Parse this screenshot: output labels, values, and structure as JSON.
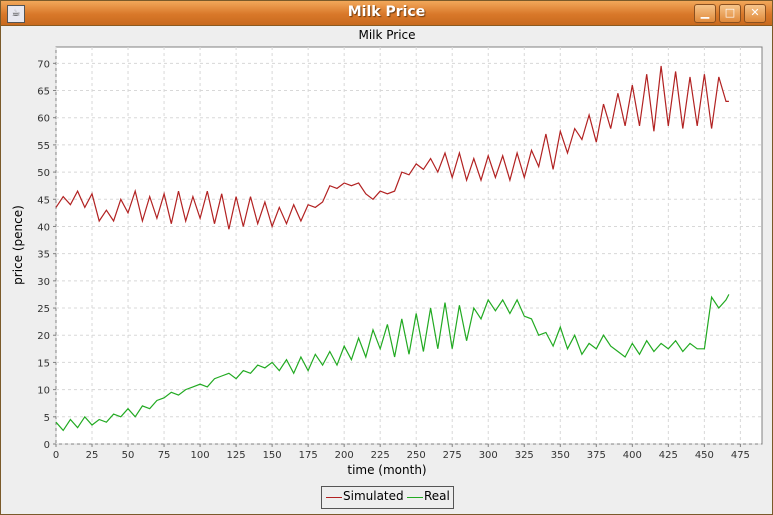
{
  "window": {
    "title": "Milk Price",
    "app_icon": "java-cup-icon"
  },
  "controls": {
    "minimize": "minimize-icon",
    "maximize": "maximize-icon",
    "close": "close-icon"
  },
  "chart_data": {
    "type": "line",
    "title": "Milk Price",
    "xlabel": "time (month)",
    "ylabel": "price (pence)",
    "xlim": [
      0,
      490
    ],
    "ylim": [
      0,
      73
    ],
    "xticks": [
      0,
      25,
      50,
      75,
      100,
      125,
      150,
      175,
      200,
      225,
      250,
      275,
      300,
      325,
      350,
      375,
      400,
      425,
      450,
      475
    ],
    "yticks": [
      0,
      5,
      10,
      15,
      20,
      25,
      30,
      35,
      40,
      45,
      50,
      55,
      60,
      65,
      70
    ],
    "grid": true,
    "legend_position": "bottom-center",
    "series": [
      {
        "name": "Simulated",
        "color": "#b22222",
        "x": [
          0,
          5,
          10,
          15,
          20,
          25,
          30,
          35,
          40,
          45,
          50,
          55,
          60,
          65,
          70,
          75,
          80,
          85,
          90,
          95,
          100,
          105,
          110,
          115,
          120,
          125,
          130,
          135,
          140,
          145,
          150,
          155,
          160,
          165,
          170,
          175,
          180,
          185,
          190,
          195,
          200,
          205,
          210,
          215,
          220,
          225,
          230,
          235,
          240,
          245,
          250,
          255,
          260,
          265,
          270,
          275,
          280,
          285,
          290,
          295,
          300,
          305,
          310,
          315,
          320,
          325,
          330,
          335,
          340,
          345,
          350,
          355,
          360,
          365,
          370,
          375,
          380,
          385,
          390,
          395,
          400,
          405,
          410,
          415,
          420,
          425,
          430,
          435,
          440,
          445,
          450,
          455,
          460,
          465,
          467
        ],
        "values": [
          43.5,
          45.5,
          44.0,
          46.5,
          43.5,
          46.0,
          41.0,
          43.0,
          41.0,
          45.0,
          42.5,
          46.5,
          41.0,
          45.5,
          41.5,
          46.0,
          40.5,
          46.5,
          41.0,
          45.5,
          41.5,
          46.5,
          40.5,
          46.0,
          39.5,
          45.5,
          40.0,
          45.5,
          40.5,
          44.5,
          40.0,
          43.5,
          40.5,
          44.0,
          41.0,
          44.0,
          43.5,
          44.5,
          47.5,
          47.0,
          48.0,
          47.5,
          48.0,
          46.0,
          45.0,
          46.5,
          46.0,
          46.5,
          50.0,
          49.5,
          51.5,
          50.5,
          52.5,
          50.0,
          53.5,
          49.0,
          53.5,
          48.5,
          52.5,
          48.5,
          53.0,
          49.0,
          53.0,
          48.5,
          53.5,
          49.0,
          54.0,
          51.0,
          57.0,
          50.5,
          57.5,
          53.5,
          58.0,
          56.0,
          60.5,
          55.5,
          62.5,
          58.0,
          64.5,
          58.5,
          66.0,
          58.5,
          68.0,
          57.5,
          69.5,
          58.5,
          68.5,
          58.0,
          67.5,
          58.5,
          68.0,
          58.0,
          67.5,
          63.0,
          63.0
        ]
      },
      {
        "name": "Real",
        "color": "#22aa22",
        "x": [
          0,
          5,
          10,
          15,
          20,
          25,
          30,
          35,
          40,
          45,
          50,
          55,
          60,
          65,
          70,
          75,
          80,
          85,
          90,
          95,
          100,
          105,
          110,
          115,
          120,
          125,
          130,
          135,
          140,
          145,
          150,
          155,
          160,
          165,
          170,
          175,
          180,
          185,
          190,
          195,
          200,
          205,
          210,
          215,
          220,
          225,
          230,
          235,
          240,
          245,
          250,
          255,
          260,
          265,
          270,
          275,
          280,
          285,
          290,
          295,
          300,
          305,
          310,
          315,
          320,
          325,
          330,
          335,
          340,
          345,
          350,
          355,
          360,
          365,
          370,
          375,
          380,
          385,
          390,
          395,
          400,
          405,
          410,
          415,
          420,
          425,
          430,
          435,
          440,
          445,
          450,
          455,
          460,
          465,
          467
        ],
        "values": [
          4.0,
          2.5,
          4.5,
          3.0,
          5.0,
          3.5,
          4.5,
          4.0,
          5.5,
          5.0,
          6.5,
          5.0,
          7.0,
          6.5,
          8.0,
          8.5,
          9.5,
          9.0,
          10.0,
          10.5,
          11.0,
          10.5,
          12.0,
          12.5,
          13.0,
          12.0,
          13.5,
          13.0,
          14.5,
          14.0,
          15.0,
          13.5,
          15.5,
          13.0,
          16.0,
          13.5,
          16.5,
          14.5,
          17.0,
          14.5,
          18.0,
          15.5,
          19.5,
          16.0,
          21.0,
          17.5,
          22.0,
          16.0,
          23.0,
          16.5,
          24.0,
          17.0,
          25.0,
          17.5,
          26.0,
          17.5,
          25.5,
          19.0,
          25.0,
          23.0,
          26.5,
          24.5,
          26.5,
          24.0,
          26.5,
          23.5,
          23.0,
          20.0,
          20.5,
          18.0,
          21.5,
          17.5,
          20.0,
          16.5,
          18.5,
          17.5,
          20.0,
          18.0,
          17.0,
          16.0,
          18.5,
          16.5,
          19.0,
          17.0,
          18.5,
          17.5,
          19.0,
          17.0,
          18.5,
          17.5,
          17.5,
          27.0,
          25.0,
          26.5,
          27.5
        ]
      }
    ]
  }
}
